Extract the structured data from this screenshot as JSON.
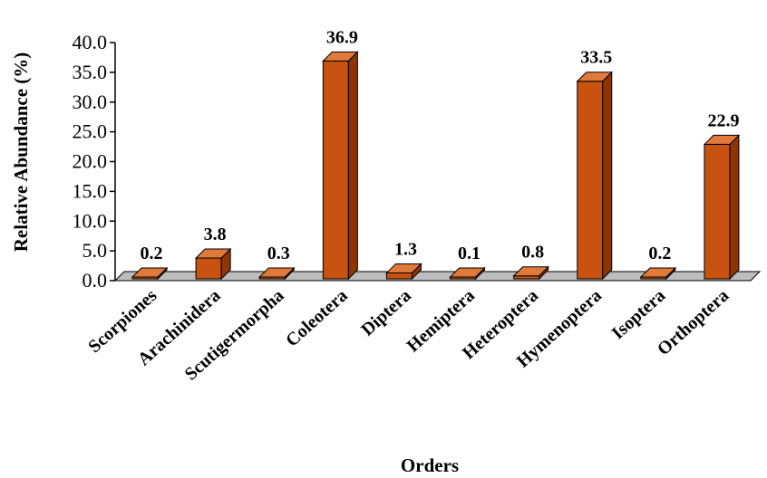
{
  "chart_data": {
    "type": "bar",
    "categories": [
      "Scorpiones",
      "Arachinidera",
      "Scutigermorpha",
      "Coleotera",
      "Diptera",
      "Hemiptera",
      "Heteroptera",
      "Hymenoptera",
      "Isoptera",
      "Orthoptera"
    ],
    "values": [
      0.2,
      3.8,
      0.3,
      36.9,
      1.3,
      0.1,
      0.8,
      33.5,
      0.2,
      22.9
    ],
    "data_labels": [
      "0.2",
      "3.8",
      "0.3",
      "36.9",
      "1.3",
      "0.1",
      "0.8",
      "33.5",
      "0.2",
      "22.9"
    ],
    "y_ticks": [
      "0.0",
      "5.0",
      "10.0",
      "15.0",
      "20.0",
      "25.0",
      "30.0",
      "35.0",
      "40.0"
    ],
    "xlabel": "Orders",
    "ylabel": "Relative Abundance (%)",
    "ylim": [
      0,
      40
    ],
    "grid": false,
    "style": "3d",
    "colors": {
      "bar_front": "#C8520F",
      "bar_side": "#8E3506",
      "bar_top": "#E07A3A",
      "floor": "#BDBDBD",
      "outline": "#000000"
    }
  }
}
